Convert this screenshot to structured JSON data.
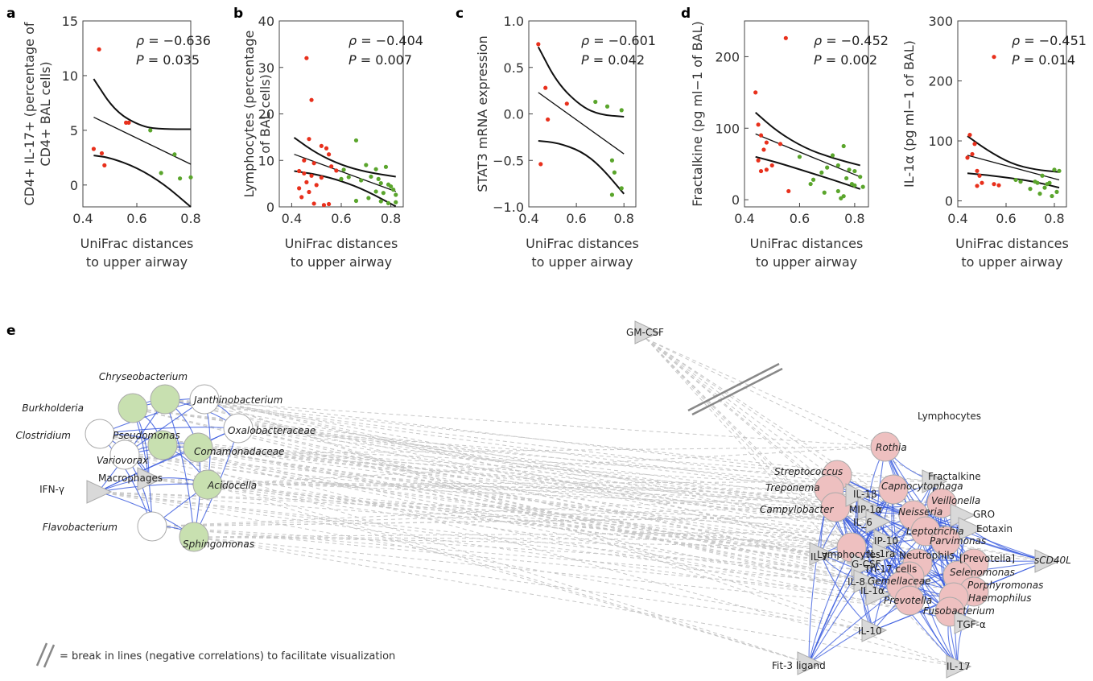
{
  "chart_data": [
    {
      "type": "scatter",
      "panel": "a",
      "ylabel_lines": [
        "CD4+ IL-17+ (percentage of",
        "CD4+ BAL cells)"
      ],
      "xlabel_lines": [
        "UniFrac distances",
        "to upper airway"
      ],
      "xlim": [
        0.4,
        0.8
      ],
      "ylim": [
        -2,
        15
      ],
      "xticks": [
        0.4,
        0.6,
        0.8
      ],
      "yticks": [
        0,
        5,
        10,
        15
      ],
      "stats": [
        "ρ = −0.636",
        "P = 0.035"
      ],
      "red_points": [
        [
          0.46,
          12.4
        ],
        [
          0.44,
          3.3
        ],
        [
          0.47,
          2.9
        ],
        [
          0.48,
          1.8
        ],
        [
          0.56,
          5.7
        ],
        [
          0.57,
          5.7
        ]
      ],
      "green_points": [
        [
          0.65,
          5.0
        ],
        [
          0.74,
          2.8
        ],
        [
          0.69,
          1.1
        ],
        [
          0.76,
          0.6
        ],
        [
          0.8,
          0.7
        ]
      ],
      "fit": [
        [
          0.44,
          6.2
        ],
        [
          0.8,
          1.9
        ]
      ],
      "ci_upper": [
        [
          0.44,
          9.7
        ],
        [
          0.52,
          6.7
        ],
        [
          0.62,
          5.3
        ],
        [
          0.7,
          5.1
        ],
        [
          0.8,
          5.1
        ]
      ],
      "ci_lower": [
        [
          0.44,
          2.7
        ],
        [
          0.5,
          2.5
        ],
        [
          0.6,
          1.6
        ],
        [
          0.7,
          0.1
        ],
        [
          0.8,
          -2.0
        ]
      ]
    },
    {
      "type": "scatter",
      "panel": "b",
      "ylabel_lines": [
        "Lymphocytes (percentage",
        "of BAL cells)"
      ],
      "xlabel_lines": [
        "UniFrac distances",
        "to upper airway"
      ],
      "xlim": [
        0.35,
        0.85
      ],
      "ylim": [
        0,
        40
      ],
      "xticks": [
        0.4,
        0.6,
        0.8
      ],
      "yticks": [
        0,
        10,
        20,
        30,
        40
      ],
      "stats": [
        "ρ = −0.404",
        "P = 0.007"
      ],
      "red_points": [
        [
          0.46,
          32.0
        ],
        [
          0.48,
          23.0
        ],
        [
          0.47,
          14.6
        ],
        [
          0.52,
          13.1
        ],
        [
          0.54,
          12.6
        ],
        [
          0.55,
          11.3
        ],
        [
          0.45,
          10.0
        ],
        [
          0.49,
          9.4
        ],
        [
          0.56,
          8.7
        ],
        [
          0.43,
          7.7
        ],
        [
          0.45,
          7.2
        ],
        [
          0.48,
          6.7
        ],
        [
          0.52,
          6.3
        ],
        [
          0.46,
          5.3
        ],
        [
          0.5,
          4.7
        ],
        [
          0.43,
          4.0
        ],
        [
          0.47,
          3.2
        ],
        [
          0.44,
          2.1
        ],
        [
          0.49,
          0.7
        ],
        [
          0.53,
          0.4
        ],
        [
          0.55,
          0.6
        ],
        [
          0.58,
          7.8
        ]
      ],
      "green_points": [
        [
          0.66,
          14.3
        ],
        [
          0.61,
          8.0
        ],
        [
          0.7,
          9.0
        ],
        [
          0.74,
          8.1
        ],
        [
          0.78,
          8.6
        ],
        [
          0.63,
          6.4
        ],
        [
          0.68,
          5.7
        ],
        [
          0.72,
          6.5
        ],
        [
          0.75,
          6.0
        ],
        [
          0.76,
          5.1
        ],
        [
          0.79,
          4.8
        ],
        [
          0.8,
          4.4
        ],
        [
          0.81,
          3.7
        ],
        [
          0.74,
          3.3
        ],
        [
          0.77,
          3.0
        ],
        [
          0.82,
          2.6
        ],
        [
          0.71,
          1.9
        ],
        [
          0.76,
          1.2
        ],
        [
          0.79,
          0.8
        ],
        [
          0.82,
          1.0
        ],
        [
          0.66,
          1.3
        ],
        [
          0.6,
          6.0
        ]
      ],
      "fit": [
        [
          0.41,
          11.3
        ],
        [
          0.82,
          3.3
        ]
      ],
      "ci_upper": [
        [
          0.41,
          14.9
        ],
        [
          0.5,
          11.5
        ],
        [
          0.6,
          9.0
        ],
        [
          0.7,
          7.5
        ],
        [
          0.82,
          6.5
        ]
      ],
      "ci_lower": [
        [
          0.41,
          7.7
        ],
        [
          0.5,
          7.0
        ],
        [
          0.6,
          5.6
        ],
        [
          0.7,
          3.5
        ],
        [
          0.82,
          0.1
        ]
      ]
    },
    {
      "type": "scatter",
      "panel": "c",
      "ylabel_lines": [
        "STAT3 mRNA expression"
      ],
      "xlabel_lines": [
        "UniFrac distances",
        "to upper airway"
      ],
      "xlim": [
        0.4,
        0.85
      ],
      "ylim": [
        -1.0,
        1.0
      ],
      "xticks": [
        0.4,
        0.6,
        0.8
      ],
      "yticks": [
        -1.0,
        -0.5,
        0.0,
        0.5,
        1.0
      ],
      "stats": [
        "ρ = −0.601",
        "P = 0.042"
      ],
      "red_points": [
        [
          0.44,
          0.75
        ],
        [
          0.47,
          0.28
        ],
        [
          0.56,
          0.11
        ],
        [
          0.48,
          -0.06
        ],
        [
          0.45,
          -0.54
        ]
      ],
      "green_points": [
        [
          0.68,
          0.13
        ],
        [
          0.73,
          0.08
        ],
        [
          0.79,
          0.04
        ],
        [
          0.75,
          -0.5
        ],
        [
          0.76,
          -0.63
        ],
        [
          0.79,
          -0.8
        ],
        [
          0.75,
          -0.87
        ]
      ],
      "fit": [
        [
          0.44,
          0.23
        ],
        [
          0.8,
          -0.43
        ]
      ],
      "ci_upper": [
        [
          0.44,
          0.72
        ],
        [
          0.52,
          0.33
        ],
        [
          0.62,
          0.08
        ],
        [
          0.7,
          -0.01
        ],
        [
          0.8,
          -0.03
        ]
      ],
      "ci_lower": [
        [
          0.44,
          -0.29
        ],
        [
          0.52,
          -0.31
        ],
        [
          0.62,
          -0.4
        ],
        [
          0.7,
          -0.56
        ],
        [
          0.8,
          -0.86
        ]
      ]
    },
    {
      "type": "scatter",
      "panel": "d",
      "ylabel_lines": [
        "Fractalkine (pg ml−1 of BAL)"
      ],
      "xlabel_lines": [
        "UniFrac distances",
        "to upper airway"
      ],
      "xlim": [
        0.4,
        0.85
      ],
      "ylim": [
        -10,
        250
      ],
      "xticks": [
        0.4,
        0.6,
        0.8
      ],
      "yticks": [
        0,
        100,
        200
      ],
      "stats": [
        "ρ = −0.452",
        "P = 0.002"
      ],
      "red_points": [
        [
          0.55,
          226
        ],
        [
          0.44,
          150
        ],
        [
          0.45,
          105
        ],
        [
          0.46,
          90
        ],
        [
          0.48,
          80
        ],
        [
          0.47,
          70
        ],
        [
          0.45,
          55
        ],
        [
          0.5,
          48
        ],
        [
          0.46,
          40
        ],
        [
          0.48,
          42
        ],
        [
          0.56,
          12
        ],
        [
          0.53,
          78
        ]
      ],
      "green_points": [
        [
          0.6,
          60
        ],
        [
          0.76,
          75
        ],
        [
          0.72,
          62
        ],
        [
          0.78,
          42
        ],
        [
          0.7,
          45
        ],
        [
          0.74,
          48
        ],
        [
          0.8,
          40
        ],
        [
          0.77,
          30
        ],
        [
          0.68,
          38
        ],
        [
          0.65,
          28
        ],
        [
          0.82,
          32
        ],
        [
          0.8,
          20
        ],
        [
          0.74,
          12
        ],
        [
          0.76,
          5
        ],
        [
          0.79,
          22
        ],
        [
          0.83,
          18
        ],
        [
          0.64,
          22
        ],
        [
          0.69,
          10
        ],
        [
          0.75,
          2
        ]
      ],
      "fit": [
        [
          0.44,
          92
        ],
        [
          0.82,
          32
        ]
      ],
      "ci_upper": [
        [
          0.44,
          122
        ],
        [
          0.52,
          95
        ],
        [
          0.62,
          72
        ],
        [
          0.72,
          58
        ],
        [
          0.82,
          48
        ]
      ],
      "ci_lower": [
        [
          0.44,
          60
        ],
        [
          0.52,
          52
        ],
        [
          0.62,
          40
        ],
        [
          0.72,
          28
        ],
        [
          0.82,
          15
        ]
      ]
    },
    {
      "type": "scatter",
      "panel": "",
      "ylabel_lines": [
        "IL-1α (pg ml−1 of BAL)"
      ],
      "xlabel_lines": [
        "UniFrac distances",
        "to upper airway"
      ],
      "xlim": [
        0.4,
        0.85
      ],
      "ylim": [
        -10,
        300
      ],
      "xticks": [
        0.4,
        0.6,
        0.8
      ],
      "yticks": [
        0,
        100,
        200,
        300
      ],
      "stats": [
        "ρ = −0.451",
        "P = 0.014"
      ],
      "red_points": [
        [
          0.55,
          240
        ],
        [
          0.45,
          110
        ],
        [
          0.47,
          95
        ],
        [
          0.46,
          78
        ],
        [
          0.44,
          72
        ],
        [
          0.48,
          50
        ],
        [
          0.49,
          42
        ],
        [
          0.5,
          30
        ],
        [
          0.48,
          25
        ],
        [
          0.55,
          28
        ],
        [
          0.57,
          26
        ]
      ],
      "green_points": [
        [
          0.64,
          35
        ],
        [
          0.72,
          32
        ],
        [
          0.75,
          42
        ],
        [
          0.78,
          30
        ],
        [
          0.8,
          52
        ],
        [
          0.82,
          50
        ],
        [
          0.76,
          22
        ],
        [
          0.7,
          20
        ],
        [
          0.74,
          12
        ],
        [
          0.79,
          8
        ],
        [
          0.81,
          15
        ],
        [
          0.66,
          32
        ],
        [
          0.77,
          28
        ],
        [
          0.73,
          30
        ]
      ],
      "fit": [
        [
          0.44,
          76
        ],
        [
          0.82,
          35
        ]
      ],
      "ci_upper": [
        [
          0.44,
          108
        ],
        [
          0.52,
          85
        ],
        [
          0.62,
          62
        ],
        [
          0.72,
          52
        ],
        [
          0.82,
          48
        ]
      ],
      "ci_lower": [
        [
          0.44,
          46
        ],
        [
          0.52,
          43
        ],
        [
          0.62,
          38
        ],
        [
          0.72,
          32
        ],
        [
          0.82,
          22
        ]
      ]
    }
  ],
  "network": {
    "panel": "e",
    "break_note": "= break in lines (negative correlations) to facilitate visualization",
    "left_cluster": [
      {
        "label": "Chryseobacterium",
        "italic": true,
        "color": "green"
      },
      {
        "label": "Burkholderia",
        "italic": true,
        "color": "green"
      },
      {
        "label": "Janthinobacterium",
        "italic": true,
        "color": "white"
      },
      {
        "label": "Oxalobacteraceae",
        "italic": true,
        "color": "white"
      },
      {
        "label": "Clostridium",
        "italic": true,
        "color": "white"
      },
      {
        "label": "Pseudomonas",
        "italic": true,
        "color": "green"
      },
      {
        "label": "Comamonadaceae",
        "italic": true,
        "color": "green"
      },
      {
        "label": "Variovorax",
        "italic": true,
        "color": "white"
      },
      {
        "label": "Macrophages",
        "italic": false,
        "color": "triangle"
      },
      {
        "label": "IFN-γ",
        "italic": false,
        "color": "triangle"
      },
      {
        "label": "Acidocella",
        "italic": true,
        "color": "green"
      },
      {
        "label": "Flavobacterium",
        "italic": true,
        "color": "white"
      },
      {
        "label": "Sphingomonas",
        "italic": true,
        "color": "green"
      }
    ],
    "top_node": {
      "label": "GM-CSF"
    },
    "right_header": "Lymphocytes",
    "right_cluster": [
      {
        "label": "Rothia",
        "italic": true,
        "color": "red"
      },
      {
        "label": "Streptococcus",
        "italic": true,
        "color": "red"
      },
      {
        "label": "Treponema",
        "italic": true,
        "color": "red"
      },
      {
        "label": "Campylobacter",
        "italic": true,
        "color": "red"
      },
      {
        "label": "Fractalkine",
        "italic": false,
        "color": "triangle"
      },
      {
        "label": "IL-1β",
        "italic": false,
        "color": "triangle"
      },
      {
        "label": "Capnocytophaga",
        "italic": true,
        "color": "red"
      },
      {
        "label": "Veillonella",
        "italic": true,
        "color": "red"
      },
      {
        "label": "MIP-1α",
        "italic": false,
        "color": "triangle"
      },
      {
        "label": "Neisseria",
        "italic": true,
        "color": "red"
      },
      {
        "label": "IL_6",
        "italic": false,
        "color": "triangle"
      },
      {
        "label": "GRO",
        "italic": false,
        "color": "triangle"
      },
      {
        "label": "Leptotrichia",
        "italic": true,
        "color": "red"
      },
      {
        "label": "Eotaxin",
        "italic": false,
        "color": "triangle"
      },
      {
        "label": "Lymphocytes",
        "italic": false,
        "color": "red"
      },
      {
        "label": "IP-10",
        "italic": false,
        "color": "triangle"
      },
      {
        "label": "Parvimonas",
        "italic": true,
        "color": "red"
      },
      {
        "label": "IL-7",
        "italic": false,
        "color": "triangle"
      },
      {
        "label": "IL-1ra",
        "italic": false,
        "color": "triangle"
      },
      {
        "label": "Neutrophils",
        "italic": false,
        "color": "red"
      },
      {
        "label": "[Prevotella]",
        "italic": false,
        "color": "red"
      },
      {
        "label": "sCD40L",
        "italic": true,
        "color": "triangle"
      },
      {
        "label": "G-CSF",
        "italic": false,
        "color": "triangle"
      },
      {
        "label": "Th-17 cells",
        "italic": false,
        "color": "red"
      },
      {
        "label": "Selenomonas",
        "italic": true,
        "color": "red"
      },
      {
        "label": "IL-8",
        "italic": false,
        "color": "triangle"
      },
      {
        "label": "Gemellaceae",
        "italic": true,
        "color": "red"
      },
      {
        "label": "Porphyromonas",
        "italic": true,
        "color": "red"
      },
      {
        "label": "IL-1α",
        "italic": false,
        "color": "triangle"
      },
      {
        "label": "Haemophilus",
        "italic": true,
        "color": "red"
      },
      {
        "label": "Prevotella",
        "italic": true,
        "color": "red"
      },
      {
        "label": "Fusobacterium",
        "italic": true,
        "color": "red"
      },
      {
        "label": "TGF-α",
        "italic": false,
        "color": "triangle"
      },
      {
        "label": "IL-10",
        "italic": false,
        "color": "triangle"
      },
      {
        "label": "Fit-3 ligand",
        "italic": false,
        "color": "triangle"
      },
      {
        "label": "IL-17",
        "italic": false,
        "color": "triangle"
      }
    ],
    "colors": {
      "red_node": "#eec0c0",
      "green_node": "#c8e0b0",
      "white_node": "#ffffff",
      "triangle": "#d9d9d9",
      "positive_edge": "#3355dd",
      "negative_edge": "#c8c8c8",
      "red_point": "#e8301c",
      "green_point": "#5aa52c"
    }
  }
}
